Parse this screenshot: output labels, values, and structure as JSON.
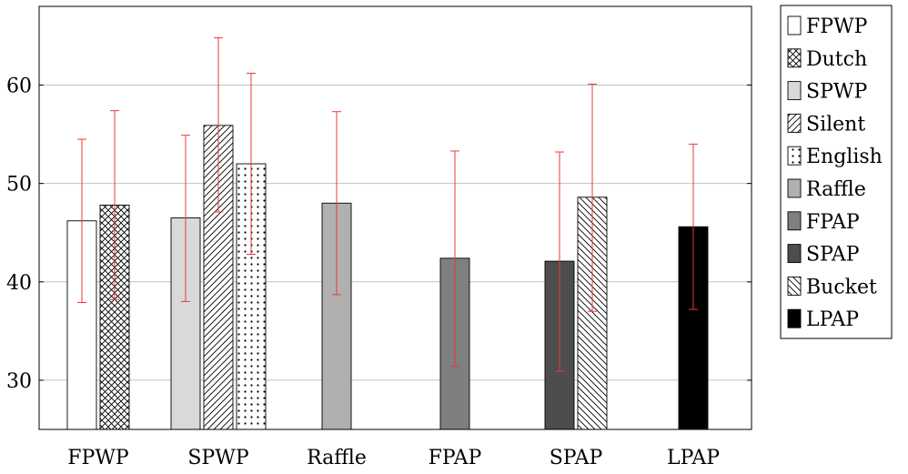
{
  "chart_data": {
    "type": "bar",
    "title": "",
    "xlabel": "",
    "ylabel": "",
    "ylim": [
      25,
      68
    ],
    "yticks": [
      30,
      40,
      50,
      60
    ],
    "grid": "horizontal",
    "legend_position": "right",
    "categories": [
      "FPWP",
      "SPWP",
      "Raffle",
      "FPAP",
      "SPAP",
      "LPAP"
    ],
    "series": [
      {
        "name": "FPWP",
        "fill": "#ffffff",
        "pattern": "none"
      },
      {
        "name": "Dutch",
        "fill": "#ffffff",
        "pattern": "crosshatch"
      },
      {
        "name": "SPWP",
        "fill": "#d9d9d9",
        "pattern": "none"
      },
      {
        "name": "Silent",
        "fill": "#ffffff",
        "pattern": "diagonal-up"
      },
      {
        "name": "English",
        "fill": "#ffffff",
        "pattern": "dots"
      },
      {
        "name": "Raffle",
        "fill": "#b0b0b0",
        "pattern": "none"
      },
      {
        "name": "FPAP",
        "fill": "#7f7f7f",
        "pattern": "none"
      },
      {
        "name": "SPAP",
        "fill": "#4d4d4d",
        "pattern": "none"
      },
      {
        "name": "Bucket",
        "fill": "#ffffff",
        "pattern": "diagonal-down"
      },
      {
        "name": "LPAP",
        "fill": "#000000",
        "pattern": "none"
      }
    ],
    "bars": [
      {
        "category": "FPWP",
        "series": "FPWP",
        "value": 46.2,
        "err_low": 37.9,
        "err_high": 54.5
      },
      {
        "category": "FPWP",
        "series": "Dutch",
        "value": 47.8,
        "err_low": 38.2,
        "err_high": 57.4
      },
      {
        "category": "SPWP",
        "series": "SPWP",
        "value": 46.5,
        "err_low": 38.0,
        "err_high": 54.9
      },
      {
        "category": "SPWP",
        "series": "Silent",
        "value": 55.9,
        "err_low": 47.1,
        "err_high": 64.8
      },
      {
        "category": "SPWP",
        "series": "English",
        "value": 52.0,
        "err_low": 42.8,
        "err_high": 61.2
      },
      {
        "category": "Raffle",
        "series": "Raffle",
        "value": 48.0,
        "err_low": 38.7,
        "err_high": 57.3
      },
      {
        "category": "FPAP",
        "series": "FPAP",
        "value": 42.4,
        "err_low": 31.4,
        "err_high": 53.3
      },
      {
        "category": "SPAP",
        "series": "SPAP",
        "value": 42.1,
        "err_low": 30.9,
        "err_high": 53.2
      },
      {
        "category": "SPAP",
        "series": "Bucket",
        "value": 48.6,
        "err_low": 37.0,
        "err_high": 60.1
      },
      {
        "category": "LPAP",
        "series": "LPAP",
        "value": 45.6,
        "err_low": 37.2,
        "err_high": 54.0
      }
    ],
    "colors": {
      "error_bar": "#e8393a",
      "grid": "#c0c0c0",
      "axis": "#000000"
    }
  }
}
